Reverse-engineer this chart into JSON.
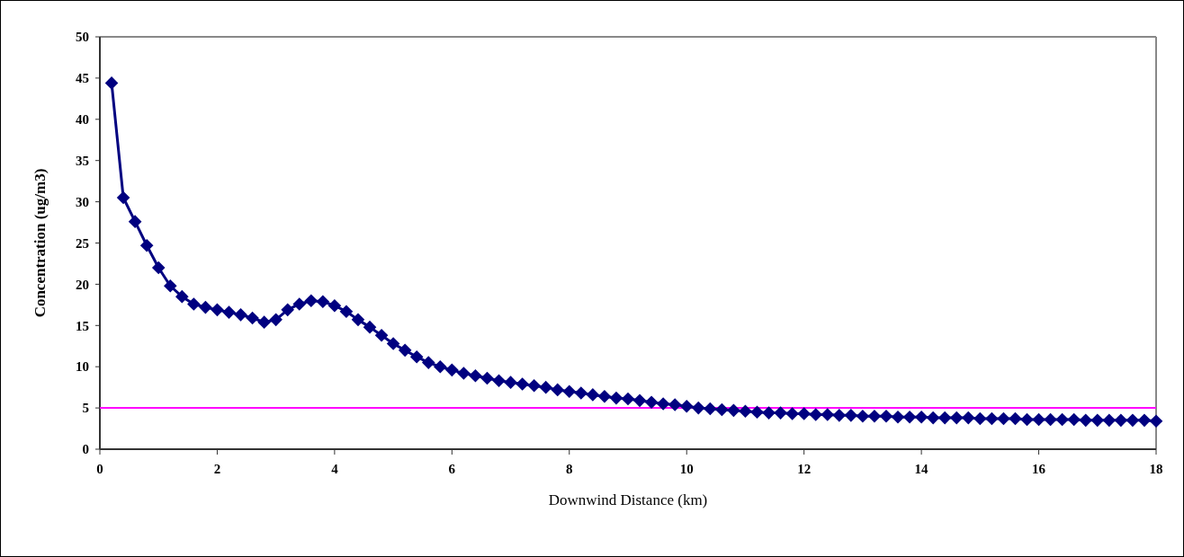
{
  "chart_data": {
    "type": "line",
    "xlabel": "Downwind Distance (km)",
    "ylabel": "Concentration (ug/m3)",
    "x": [
      0.2,
      0.4,
      0.6,
      0.8,
      1.0,
      1.2,
      1.4,
      1.6,
      1.8,
      2.0,
      2.2,
      2.4,
      2.6,
      2.8,
      3.0,
      3.2,
      3.4,
      3.6,
      3.8,
      4.0,
      4.2,
      4.4,
      4.6,
      4.8,
      5.0,
      5.2,
      5.4,
      5.6,
      5.8,
      6.0,
      6.2,
      6.4,
      6.6,
      6.8,
      7.0,
      7.2,
      7.4,
      7.6,
      7.8,
      8.0,
      8.2,
      8.4,
      8.6,
      8.8,
      9.0,
      9.2,
      9.4,
      9.6,
      9.8,
      10.0,
      10.2,
      10.4,
      10.6,
      10.8,
      11.0,
      11.2,
      11.4,
      11.6,
      11.8,
      12.0,
      12.2,
      12.4,
      12.6,
      12.8,
      13.0,
      13.2,
      13.4,
      13.6,
      13.8,
      14.0,
      14.2,
      14.4,
      14.6,
      14.8,
      15.0,
      15.2,
      15.4,
      15.6,
      15.8,
      16.0,
      16.2,
      16.4,
      16.6,
      16.8,
      17.0,
      17.2,
      17.4,
      17.6,
      17.8,
      18.0
    ],
    "series": [
      {
        "color": "#000080",
        "values": [
          44.4,
          30.5,
          27.6,
          24.7,
          22.0,
          19.8,
          18.5,
          17.6,
          17.2,
          16.9,
          16.6,
          16.3,
          15.9,
          15.4,
          15.7,
          16.9,
          17.6,
          18.0,
          17.9,
          17.4,
          16.7,
          15.7,
          14.8,
          13.8,
          12.8,
          12.0,
          11.2,
          10.5,
          10.0,
          9.6,
          9.2,
          8.9,
          8.6,
          8.3,
          8.1,
          7.9,
          7.7,
          7.5,
          7.2,
          7.0,
          6.8,
          6.6,
          6.4,
          6.2,
          6.1,
          5.9,
          5.7,
          5.5,
          5.4,
          5.2,
          5.0,
          4.9,
          4.8,
          4.7,
          4.6,
          4.5,
          4.4,
          4.4,
          4.3,
          4.3,
          4.2,
          4.2,
          4.1,
          4.1,
          4.0,
          4.0,
          4.0,
          3.9,
          3.9,
          3.9,
          3.8,
          3.8,
          3.8,
          3.8,
          3.7,
          3.7,
          3.7,
          3.7,
          3.6,
          3.6,
          3.6,
          3.6,
          3.6,
          3.5,
          3.5,
          3.5,
          3.5,
          3.5,
          3.5,
          3.4
        ]
      }
    ],
    "xlim": [
      0,
      18
    ],
    "xticks": [
      0,
      2,
      4,
      6,
      8,
      10,
      12,
      14,
      16,
      18
    ],
    "ylim": [
      0,
      50
    ],
    "yticks": [
      0,
      5,
      10,
      15,
      20,
      25,
      30,
      35,
      40,
      45,
      50
    ],
    "ref_lines": [
      {
        "axis": "y",
        "value": 5,
        "color": "#ff00ff"
      }
    ],
    "marker": "diamond",
    "line_style": "solid",
    "grid": false
  }
}
